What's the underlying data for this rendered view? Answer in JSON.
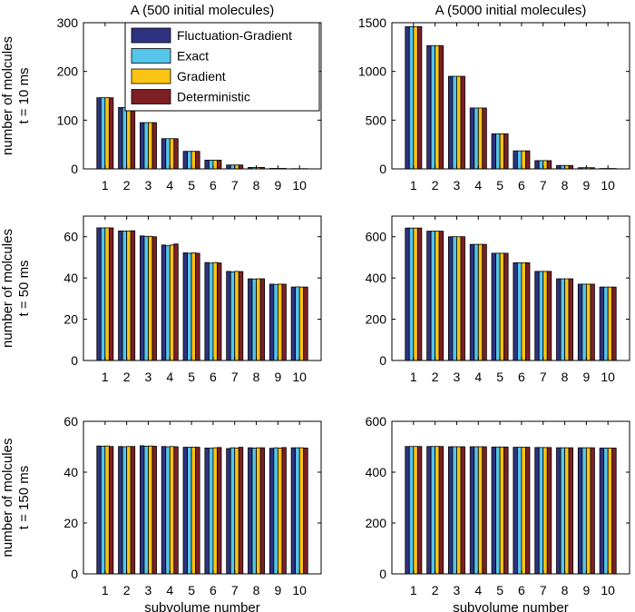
{
  "figure": {
    "col_titles": [
      "A (500 initial molecules)",
      "A (5000 initial molecules)"
    ],
    "row_labels": [
      [
        "number of molcules",
        "t = 10 ms"
      ],
      [
        "number of molcules",
        "t = 50 ms"
      ],
      [
        "number of molcules",
        "t = 150 ms"
      ]
    ],
    "xlabel": "subvolume number"
  },
  "colors": {
    "Fluctuation-Gradient": "#2e3381",
    "Exact": "#55c5ea",
    "Gradient": "#fbc414",
    "Deterministic": "#7d1f24"
  },
  "chart_data": [
    {
      "type": "bar",
      "row": 0,
      "col": 0,
      "title": "A (500 initial molecules)",
      "ylabel": "number of molcules t = 10 ms",
      "xlabel": "",
      "categories": [
        "1",
        "2",
        "3",
        "4",
        "5",
        "6",
        "7",
        "8",
        "9",
        "10"
      ],
      "ylim": [
        0,
        300
      ],
      "yticks": [
        0,
        100,
        200,
        300
      ],
      "legend": "top-right",
      "series": [
        {
          "name": "Fluctuation-Gradient",
          "values": [
            146,
            126,
            95,
            62,
            36,
            18,
            8,
            3,
            1,
            0.5
          ]
        },
        {
          "name": "Exact",
          "values": [
            146,
            126,
            95,
            62,
            36,
            18,
            8,
            3,
            1,
            0.5
          ]
        },
        {
          "name": "Gradient",
          "values": [
            146,
            126,
            95,
            62,
            36,
            18,
            8,
            3,
            1,
            0.5
          ]
        },
        {
          "name": "Deterministic",
          "values": [
            146,
            126,
            95,
            62,
            36,
            18,
            8,
            3,
            1,
            0.5
          ]
        }
      ]
    },
    {
      "type": "bar",
      "row": 0,
      "col": 1,
      "title": "A (5000 initial molecules)",
      "ylabel": "",
      "xlabel": "",
      "categories": [
        "1",
        "2",
        "3",
        "4",
        "5",
        "6",
        "7",
        "8",
        "9",
        "10"
      ],
      "ylim": [
        0,
        1500
      ],
      "yticks": [
        0,
        500,
        1000,
        1500
      ],
      "series": [
        {
          "name": "Fluctuation-Gradient",
          "values": [
            1460,
            1265,
            950,
            625,
            360,
            185,
            85,
            35,
            12,
            4
          ]
        },
        {
          "name": "Exact",
          "values": [
            1460,
            1265,
            950,
            625,
            360,
            185,
            85,
            35,
            12,
            4
          ]
        },
        {
          "name": "Gradient",
          "values": [
            1460,
            1265,
            950,
            625,
            360,
            185,
            85,
            35,
            12,
            4
          ]
        },
        {
          "name": "Deterministic",
          "values": [
            1460,
            1265,
            950,
            625,
            360,
            185,
            85,
            35,
            12,
            4
          ]
        }
      ]
    },
    {
      "type": "bar",
      "row": 1,
      "col": 0,
      "title": "",
      "ylabel": "number of molcules t = 50 ms",
      "xlabel": "",
      "categories": [
        "1",
        "2",
        "3",
        "4",
        "5",
        "6",
        "7",
        "8",
        "9",
        "10"
      ],
      "ylim": [
        0,
        70
      ],
      "yticks": [
        0,
        20,
        40,
        60
      ],
      "series": [
        {
          "name": "Fluctuation-Gradient",
          "values": [
            64.3,
            62.8,
            60.4,
            56.0,
            52.2,
            47.5,
            43.2,
            39.6,
            37.0,
            35.6
          ]
        },
        {
          "name": "Exact",
          "values": [
            64.3,
            62.8,
            60.2,
            55.6,
            52.0,
            47.2,
            43.0,
            39.5,
            36.9,
            35.7
          ]
        },
        {
          "name": "Gradient",
          "values": [
            64.3,
            62.8,
            60.2,
            56.0,
            52.2,
            47.5,
            43.2,
            39.6,
            37.0,
            35.6
          ]
        },
        {
          "name": "Deterministic",
          "values": [
            64.3,
            62.9,
            60.0,
            56.5,
            52.0,
            47.3,
            43.1,
            39.6,
            37.0,
            35.6
          ]
        }
      ]
    },
    {
      "type": "bar",
      "row": 1,
      "col": 1,
      "title": "",
      "ylabel": "",
      "xlabel": "",
      "categories": [
        "1",
        "2",
        "3",
        "4",
        "5",
        "6",
        "7",
        "8",
        "9",
        "10"
      ],
      "ylim": [
        0,
        700
      ],
      "yticks": [
        0,
        200,
        400,
        600
      ],
      "series": [
        {
          "name": "Fluctuation-Gradient",
          "values": [
            642,
            627,
            600,
            563,
            520,
            474,
            432,
            396,
            370,
            356
          ]
        },
        {
          "name": "Exact",
          "values": [
            642,
            627,
            600,
            563,
            520,
            474,
            432,
            396,
            370,
            356
          ]
        },
        {
          "name": "Gradient",
          "values": [
            642,
            627,
            600,
            563,
            520,
            474,
            432,
            396,
            370,
            356
          ]
        },
        {
          "name": "Deterministic",
          "values": [
            642,
            627,
            600,
            563,
            520,
            474,
            432,
            396,
            370,
            356
          ]
        }
      ]
    },
    {
      "type": "bar",
      "row": 2,
      "col": 0,
      "title": "",
      "ylabel": "number of molcules t = 150 ms",
      "xlabel": "subvolume number",
      "categories": [
        "1",
        "2",
        "3",
        "4",
        "5",
        "6",
        "7",
        "8",
        "9",
        "10"
      ],
      "ylim": [
        0,
        60
      ],
      "yticks": [
        0,
        20,
        40,
        60
      ],
      "series": [
        {
          "name": "Fluctuation-Gradient",
          "values": [
            50.3,
            50.1,
            50.4,
            50.1,
            49.8,
            49.5,
            49.3,
            49.6,
            49.4,
            49.6
          ]
        },
        {
          "name": "Exact",
          "values": [
            50.2,
            50.0,
            50.2,
            50.0,
            49.8,
            49.4,
            49.6,
            49.5,
            49.6,
            49.6
          ]
        },
        {
          "name": "Gradient",
          "values": [
            50.3,
            50.1,
            50.3,
            50.1,
            49.8,
            49.6,
            49.5,
            49.6,
            49.5,
            49.6
          ]
        },
        {
          "name": "Deterministic",
          "values": [
            50.1,
            50.1,
            50.2,
            50.0,
            49.8,
            49.7,
            49.8,
            49.6,
            49.7,
            49.5
          ]
        }
      ]
    },
    {
      "type": "bar",
      "row": 2,
      "col": 1,
      "title": "",
      "ylabel": "",
      "xlabel": "subvolume number",
      "categories": [
        "1",
        "2",
        "3",
        "4",
        "5",
        "6",
        "7",
        "8",
        "9",
        "10"
      ],
      "ylim": [
        0,
        600
      ],
      "yticks": [
        0,
        200,
        400,
        600
      ],
      "series": [
        {
          "name": "Fluctuation-Gradient",
          "values": [
            501,
            501,
            500,
            500,
            499,
            498,
            497,
            496,
            496,
            495
          ]
        },
        {
          "name": "Exact",
          "values": [
            501,
            501,
            500,
            500,
            499,
            498,
            497,
            496,
            496,
            495
          ]
        },
        {
          "name": "Gradient",
          "values": [
            501,
            501,
            500,
            500,
            499,
            498,
            497,
            496,
            496,
            495
          ]
        },
        {
          "name": "Deterministic",
          "values": [
            501,
            501,
            500,
            500,
            499,
            498,
            497,
            496,
            496,
            495
          ]
        }
      ]
    }
  ]
}
